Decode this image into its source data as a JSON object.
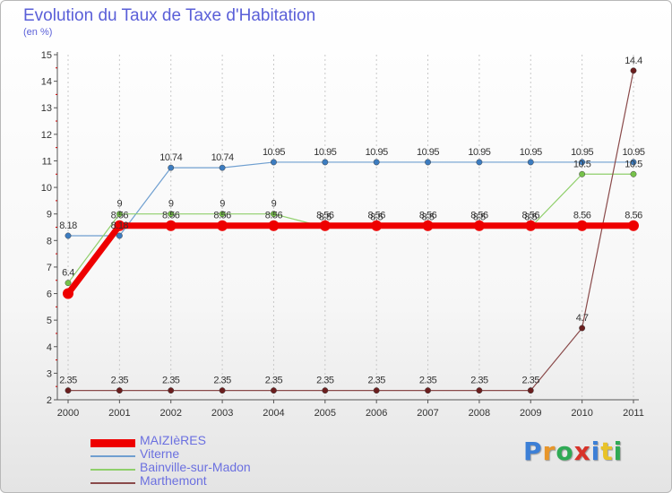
{
  "header": {
    "title": "Evolution du Taux de Taxe d'Habitation",
    "subtitle": "(en %)"
  },
  "logo": {
    "text": "Proxiti",
    "letter_colors": [
      "#3c7fd6",
      "#e8962a",
      "#2faa55",
      "#d8332a",
      "#3c7fd6",
      "#e8c328",
      "#2faa55"
    ]
  },
  "chart_data": {
    "type": "line",
    "title": "Evolution du Taux de Taxe d'Habitation",
    "subtitle": "(en %)",
    "xlabel": "",
    "ylabel": "",
    "x": [
      "2000",
      "2001",
      "2002",
      "2003",
      "2004",
      "2005",
      "2006",
      "2007",
      "2008",
      "2009",
      "2010",
      "2011"
    ],
    "ylim": [
      2,
      15
    ],
    "yticks": [
      2,
      3,
      4,
      5,
      6,
      7,
      8,
      9,
      10,
      11,
      12,
      13,
      14,
      15
    ],
    "grid": "vertical dashed",
    "legend_position": "bottom-left",
    "series": [
      {
        "name": "Viterne",
        "color": "#6f9fd0",
        "marker_color": "#3c7cc0",
        "line_width": 1.2,
        "marker_radius": 3.2,
        "values": [
          8.18,
          8.18,
          10.74,
          10.74,
          10.95,
          10.95,
          10.95,
          10.95,
          10.95,
          10.95,
          10.95,
          10.95
        ],
        "labels": [
          "8.18",
          "8.18",
          "10.74",
          "10.74",
          "10.95",
          "10.95",
          "10.95",
          "10.95",
          "10.95",
          "10.95",
          "10.95",
          "10.95"
        ],
        "label_shown": [
          true,
          true,
          true,
          true,
          true,
          true,
          true,
          true,
          true,
          true,
          true,
          true
        ]
      },
      {
        "name": "Bainville-sur-Madon",
        "color": "#8fcf6a",
        "marker_color": "#76c24a",
        "line_width": 1.2,
        "marker_radius": 3.2,
        "values": [
          6.4,
          9,
          9,
          9,
          9,
          8.5,
          8.5,
          8.5,
          8.5,
          8.5,
          10.5,
          10.5
        ],
        "labels": [
          "6.4",
          "9",
          "9",
          "9",
          "9",
          "8.5",
          "8.5",
          "8.5",
          "8.5",
          "8.5",
          "10.5",
          "10.5"
        ],
        "label_shown": [
          true,
          true,
          true,
          true,
          true,
          true,
          true,
          true,
          true,
          true,
          true,
          true
        ]
      },
      {
        "name": "Marthemont",
        "color": "#8a4a4a",
        "marker_color": "#6b1e1e",
        "line_width": 1.2,
        "marker_radius": 3.2,
        "values": [
          2.35,
          2.35,
          2.35,
          2.35,
          2.35,
          2.35,
          2.35,
          2.35,
          2.35,
          2.35,
          4.7,
          14.4
        ],
        "labels": [
          "2.35",
          "2.35",
          "2.35",
          "2.35",
          "2.35",
          "2.35",
          "2.35",
          "2.35",
          "2.35",
          "2.35",
          "4.7",
          "14.4"
        ],
        "label_shown": [
          true,
          true,
          true,
          true,
          true,
          true,
          true,
          true,
          true,
          true,
          true,
          true
        ]
      },
      {
        "name": "MAIZIèRES",
        "color": "#ee0000",
        "marker_color": "#ee0000",
        "line_width": 7,
        "marker_radius": 6,
        "values": [
          6,
          8.56,
          8.56,
          8.56,
          8.56,
          8.56,
          8.56,
          8.56,
          8.56,
          8.56,
          8.56,
          8.56
        ],
        "labels": [
          "6",
          "8.56",
          "8.56",
          "8.56",
          "8.56",
          "8.56",
          "8.56",
          "8.56",
          "8.56",
          "8.56",
          "8.56",
          "8.56"
        ],
        "label_shown": [
          false,
          true,
          true,
          true,
          true,
          true,
          true,
          true,
          true,
          true,
          true,
          true
        ]
      }
    ],
    "legend": [
      {
        "name": "MAIZIèRES",
        "color": "#ee0000",
        "thickness": "thick"
      },
      {
        "name": "Viterne",
        "color": "#6f9fd0",
        "thickness": "thin"
      },
      {
        "name": "Bainville-sur-Madon",
        "color": "#8fcf6a",
        "thickness": "thin"
      },
      {
        "name": "Marthemont",
        "color": "#8a4a4a",
        "thickness": "thin"
      }
    ]
  }
}
